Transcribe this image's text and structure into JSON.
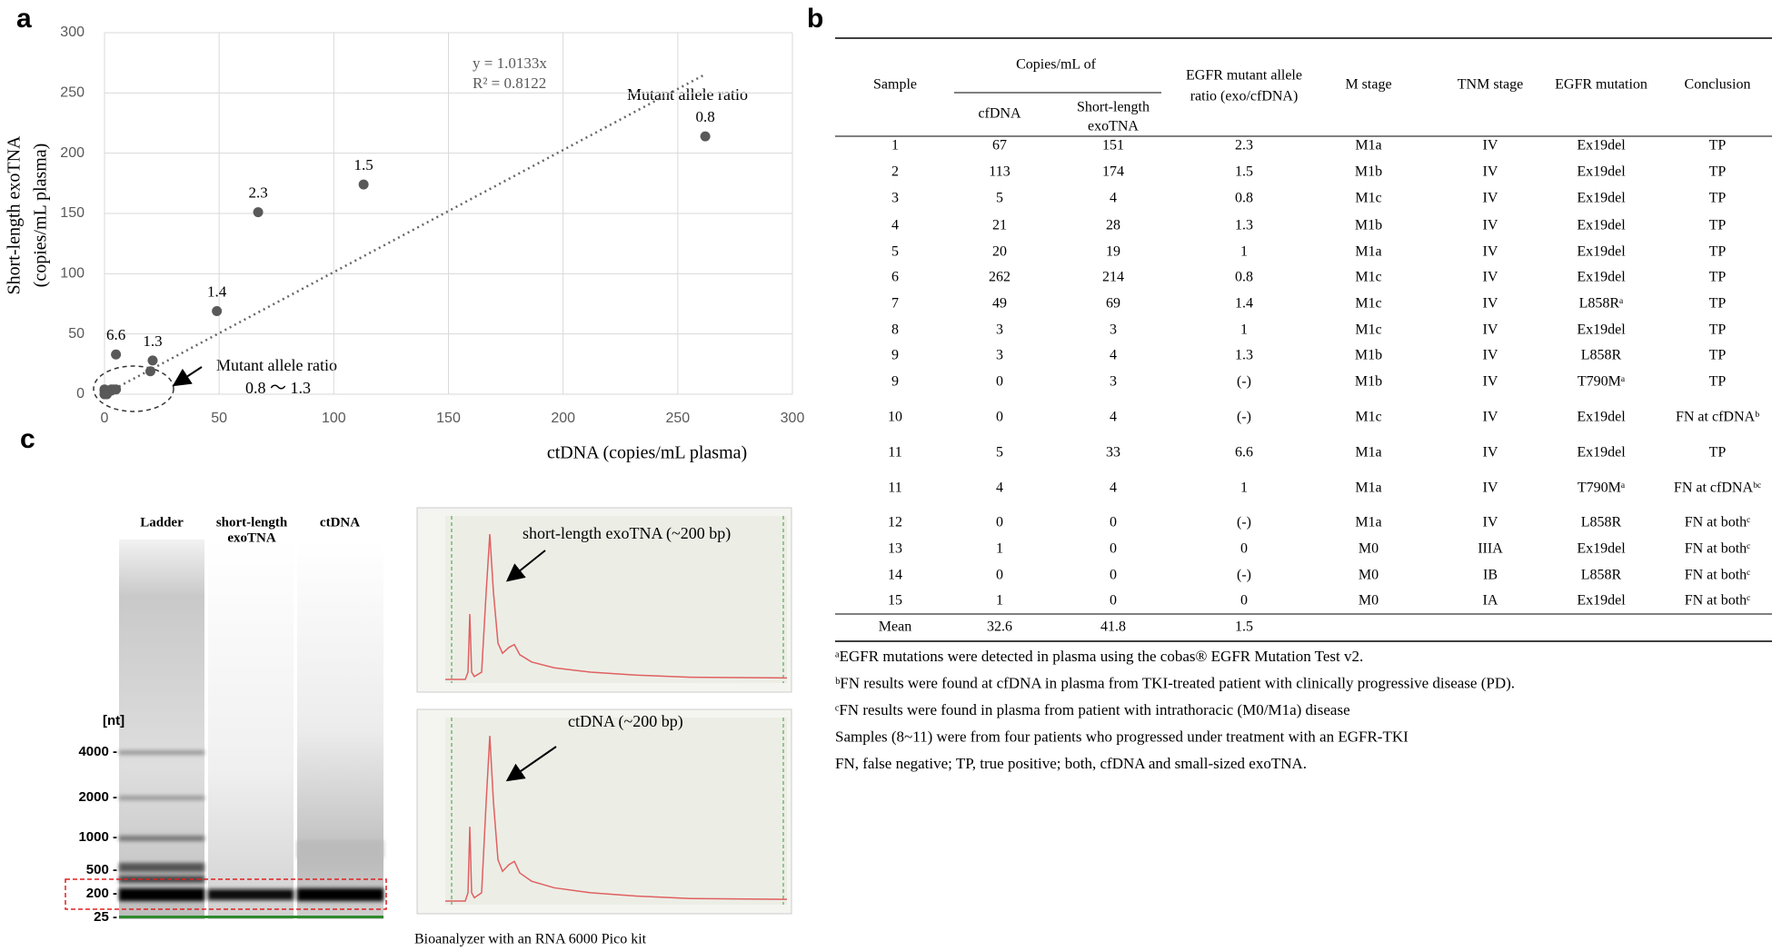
{
  "panel_labels": [
    "a",
    "b",
    "c"
  ],
  "chart_data": {
    "type": "scatter",
    "x_label": "ctDNA (copies/mL  plasma)",
    "y_label": [
      "Short-length  exoTNA",
      "(copies/mL  plasma)"
    ],
    "x": [
      67,
      113,
      5,
      21,
      20,
      262,
      49,
      3,
      3,
      0,
      0,
      5,
      4,
      0,
      1,
      0,
      1
    ],
    "y": [
      151,
      174,
      4,
      28,
      19,
      214,
      69,
      3,
      4,
      3,
      4,
      33,
      4,
      0,
      0,
      0,
      0
    ],
    "point_labels": [
      "2.3",
      "1.5",
      null,
      "1.3",
      null,
      "0.8",
      "1.4",
      null,
      null,
      null,
      null,
      "6.6",
      null,
      null,
      null,
      null,
      null
    ],
    "color": "#595959",
    "xlim": [
      0,
      300
    ],
    "ylim": [
      0,
      300
    ],
    "xticks": [
      0,
      50,
      100,
      150,
      200,
      250,
      300
    ],
    "yticks": [
      0,
      50,
      100,
      150,
      200,
      250,
      300
    ],
    "grid": true,
    "trendline": {
      "equation": "y = 1.0133x",
      "r_squared": "R² = 0.8122",
      "slope": 1.0133
    },
    "annotations": [
      "Mutant allele ratio",
      "Mutant allele ratio",
      "0.8 ～ 1.3"
    ]
  },
  "table": {
    "header": {
      "sample": "Sample",
      "copies": "Copies/mL of",
      "cfdna": "cfDNA",
      "exotna": [
        "Short-length",
        "exoTNA"
      ],
      "ratio": [
        "EGFR mutant allele",
        "ratio (exo/cfDNA)"
      ],
      "m_stage": "M stage",
      "tnm_stage": "TNM stage",
      "mutation": "EGFR mutation",
      "conclusion": "Conclusion"
    },
    "rows": [
      [
        1,
        67,
        151,
        2.3,
        "M1a",
        "IV",
        "Ex19del",
        "TP"
      ],
      [
        2,
        113,
        174,
        1.5,
        "M1b",
        "IV",
        "Ex19del",
        "TP"
      ],
      [
        3,
        5,
        4,
        0.8,
        "M1c",
        "IV",
        "Ex19del",
        "TP"
      ],
      [
        4,
        21,
        28,
        1.3,
        "M1b",
        "IV",
        "Ex19del",
        "TP"
      ],
      [
        5,
        20,
        19,
        1,
        "M1a",
        "IV",
        "Ex19del",
        "TP"
      ],
      [
        6,
        262,
        214,
        0.8,
        "M1c",
        "IV",
        "Ex19del",
        "TP"
      ],
      [
        7,
        49,
        69,
        1.4,
        "M1c",
        "IV",
        "L858Rᵃ",
        "TP"
      ],
      [
        8,
        3,
        3,
        1,
        "M1c",
        "IV",
        "Ex19del",
        "TP"
      ],
      [
        9,
        3,
        4,
        1.3,
        "M1b",
        "IV",
        "L858R",
        "TP"
      ],
      [
        9,
        0,
        3,
        "(-)",
        "M1b",
        "IV",
        "T790Mᵃ",
        "TP"
      ],
      [
        10,
        0,
        4,
        "(-)",
        "M1c",
        "IV",
        "Ex19del",
        "FN at cfDNAᵇ"
      ],
      [
        11,
        5,
        33,
        6.6,
        "M1a",
        "IV",
        "Ex19del",
        "TP"
      ],
      [
        11,
        4,
        4,
        1,
        "M1a",
        "IV",
        "T790Mᵃ",
        "FN at cfDNAᵇᶜ"
      ],
      [
        12,
        0,
        0,
        "(-)",
        "M1a",
        "IV",
        "L858R",
        "FN at bothᶜ"
      ],
      [
        13,
        1,
        0,
        0,
        "M0",
        "IIIA",
        "Ex19del",
        "FN at bothᶜ"
      ],
      [
        14,
        0,
        0,
        "(-)",
        "M0",
        "IB",
        "L858R",
        "FN at bothᶜ"
      ],
      [
        15,
        1,
        0,
        0,
        "M0",
        "IA",
        "Ex19del",
        "FN at bothᶜ"
      ]
    ],
    "mean": [
      "Mean",
      32.6,
      41.8,
      1.5
    ],
    "footnotes": [
      "ᵃEGFR mutations were detected in plasma using  the cobas® EGFR Mutation Test v2.",
      "ᵇFN results were found at cfDNA in plasma from TKI-treated patient with clinically  progressive disease (PD).",
      "ᶜFN results were found in plasma from  patient with  intrathoracic (M0/M1a) disease",
      "Samples (8~11) were from four patients who progressed under treatment with an EGFR-TKI",
      "FN, false negative; TP, true positive;  both, cfDNA and small-sized  exoTNA."
    ]
  },
  "gel": {
    "lanes": [
      "Ladder",
      [
        "short-length",
        "exoTNA"
      ],
      "ctDNA"
    ],
    "ladder_labels": [
      "[nt]",
      "4000 -",
      "2000 -",
      "1000 -",
      "500 -",
      "200 -",
      "25 -"
    ],
    "traces": [
      "short-length  exoTNA (~200 bp)",
      "ctDNA  (~200 bp)"
    ],
    "caption": "Bioanalyzer with an RNA 6000 Pico kit"
  }
}
